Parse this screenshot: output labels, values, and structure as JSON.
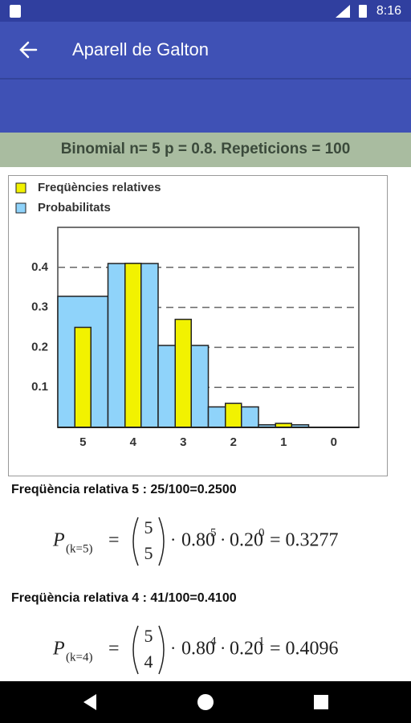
{
  "status_bar": {
    "time": "8:16"
  },
  "app_bar": {
    "title": "Aparell de Galton"
  },
  "subtitle": "Binomial n= 5 p = 0.8. Repeticions = 100",
  "chart_data": {
    "type": "bar",
    "categories": [
      "5",
      "4",
      "3",
      "2",
      "1",
      "0"
    ],
    "series": [
      {
        "name": "Freqüències relatives",
        "color": "#f2f200",
        "values": [
          0.25,
          0.41,
          0.27,
          0.06,
          0.01,
          0
        ]
      },
      {
        "name": "Probabilitats",
        "color": "#8fd3fa",
        "values": [
          0.3277,
          0.4096,
          0.2048,
          0.0512,
          0.0064,
          0.0003
        ]
      }
    ],
    "ylim": [
      0,
      0.5
    ],
    "yticks": [
      0.1,
      0.2,
      0.3,
      0.4
    ],
    "grid": true,
    "legend": "upper left"
  },
  "results": [
    {
      "text": "Freqüència relativa 5 : 25/100=0.2500",
      "formula": {
        "lhs": "P",
        "sub": "(k=5)",
        "eq": "=",
        "n": "5",
        "k": "5",
        "dot": "·",
        "b1": "0.80",
        "e1": "5",
        "b2": "0.20",
        "e2": "0",
        "result": "= 0.3277"
      }
    },
    {
      "text": "Freqüència relativa 4 : 41/100=0.4100",
      "formula": {
        "lhs": "P",
        "sub": "(k=4)",
        "eq": "=",
        "n": "5",
        "k": "4",
        "dot": "·",
        "b1": "0.80",
        "e1": "4",
        "b2": "0.20",
        "e2": "1",
        "result": "= 0.4096"
      }
    }
  ]
}
